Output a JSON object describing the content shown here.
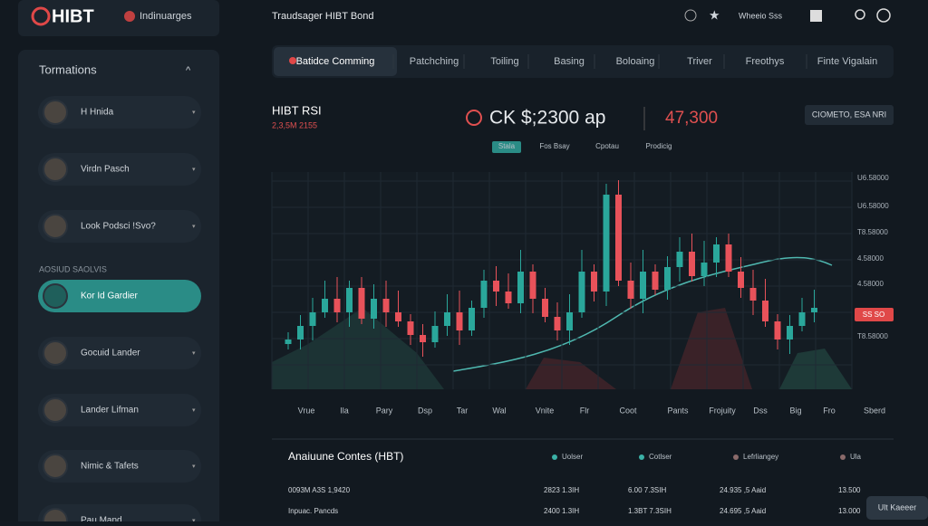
{
  "header": {
    "logo": "HIBT",
    "brand": "Indinuarges",
    "title": "Traudsager HIBT Bond",
    "user": "Wheeio Sss"
  },
  "sidebar": {
    "title": "Tormations",
    "items": [
      "H Hnida",
      "Virdn Pasch",
      "Look Podsci !Svo?"
    ],
    "section": "AOSIUD SAOLVIS",
    "active": "Kor Id Gardier",
    "more": [
      "Gocuid Lander",
      "Lander Lifman",
      "Nimic & Tafets",
      "Pau Mand"
    ]
  },
  "tabs": [
    "Batidce Comming",
    "Patchching",
    "Toiling",
    "Basing",
    "Boloaing",
    "Triver",
    "Freothys",
    "Finte Vigalain"
  ],
  "chart_header": {
    "name": "HIBT RSI",
    "sub": "2,3,5M 2155",
    "price": "CK $;2300 ap",
    "change": "47,300",
    "button": "CIOMETO, ESA NRI",
    "subtabs": [
      "Stala",
      "Fos Bsay",
      "Cpotau",
      "Prodicig"
    ]
  },
  "chart_axis": {
    "y_labels": [
      "U6.58000",
      "U6.58000",
      "T8.58000",
      "4.58000",
      "4.58000",
      "T8.58000"
    ],
    "badge": "SS SO",
    "x_labels": [
      "Vrue",
      "Ila",
      "Pary",
      "Dsp",
      "Tar",
      "Wal",
      "Vnite",
      "Flr",
      "Coot",
      "Pants",
      "Frojuity",
      "Dss",
      "Big",
      "Fro",
      "Sberd"
    ]
  },
  "table": {
    "title": "Anaiuune Contes (HBT)",
    "headers": [
      "Uolser",
      "Cotlser",
      "Lefrliangey",
      "Ula"
    ],
    "rows": [
      [
        "0093M A3S 1,9420",
        "2823 1.3IH",
        "6.00 7.3SIH",
        "24.935 ,5 Aaid",
        "13.500"
      ],
      [
        "Inpuac. Pancds",
        "2400 1.3IH",
        "1.3BT 7.3SIH",
        "24.695 ,5 Aaid",
        "13.000"
      ]
    ],
    "button": "Ult Kaeeer"
  }
}
